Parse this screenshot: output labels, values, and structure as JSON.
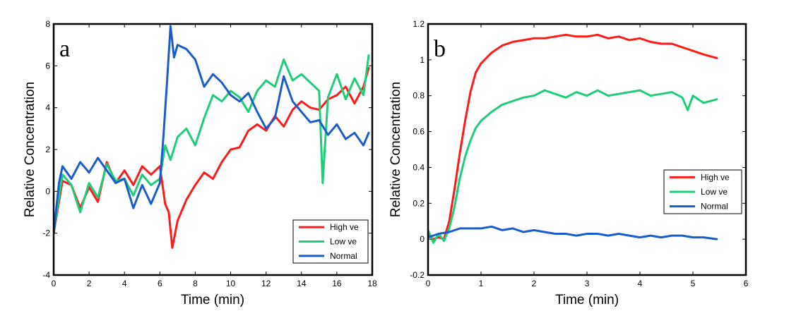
{
  "chart_data": [
    {
      "type": "line",
      "panel_label": "a",
      "xlabel": "Time (min)",
      "ylabel": "Relative Concentration",
      "xlim": [
        0,
        18
      ],
      "ylim": [
        -4,
        8
      ],
      "xticks": [
        0,
        2,
        4,
        6,
        8,
        10,
        12,
        14,
        16,
        18
      ],
      "yticks": [
        -4,
        -2,
        0,
        2,
        4,
        6,
        8
      ],
      "grid": false,
      "legend_position": "bottom-right",
      "series": [
        {
          "name": "High ve",
          "color": "#ff1a1a",
          "x": [
            0,
            0.5,
            1,
            1.5,
            2,
            2.5,
            3,
            3.5,
            4,
            4.5,
            5,
            5.5,
            6,
            6.3,
            6.5,
            6.7,
            7,
            7.5,
            8,
            8.5,
            9,
            9.5,
            10,
            10.5,
            11,
            11.5,
            12,
            12.5,
            13,
            13.5,
            14,
            14.5,
            15,
            15.5,
            16,
            16.5,
            17,
            17.5,
            17.8
          ],
          "y": [
            -2,
            0.5,
            0.3,
            -0.8,
            0.2,
            -0.5,
            1.4,
            0.4,
            1.0,
            0.3,
            1.2,
            0.8,
            1.2,
            -0.6,
            -1.0,
            -2.7,
            -1.4,
            -0.4,
            0.3,
            0.9,
            0.6,
            1.4,
            2.0,
            2.1,
            2.9,
            3.2,
            2.9,
            3.6,
            3.1,
            3.9,
            4.3,
            4.0,
            3.9,
            4.4,
            4.6,
            5.0,
            4.2,
            5.0,
            5.9
          ]
        },
        {
          "name": "Low ve",
          "color": "#1fcc7a",
          "x": [
            0,
            0.5,
            1,
            1.5,
            2,
            2.5,
            3,
            3.5,
            4,
            4.5,
            5,
            5.5,
            6,
            6.3,
            6.6,
            7,
            7.5,
            8,
            8.5,
            9,
            9.5,
            10,
            10.5,
            11,
            11.5,
            12,
            12.5,
            13,
            13.5,
            14,
            14.5,
            15,
            15.2,
            15.5,
            16,
            16.5,
            17,
            17.5,
            17.8
          ],
          "y": [
            -2,
            0.8,
            0.3,
            -1.0,
            0.4,
            -0.3,
            1.3,
            0.5,
            0.6,
            -0.2,
            0.8,
            0.3,
            0.6,
            2.2,
            1.5,
            2.6,
            3.0,
            2.2,
            3.5,
            4.6,
            4.3,
            4.8,
            4.5,
            3.8,
            4.8,
            5.3,
            5.0,
            6.3,
            5.3,
            5.6,
            5.2,
            4.8,
            0.4,
            4.5,
            5.6,
            4.4,
            5.4,
            4.6,
            6.5
          ]
        },
        {
          "name": "Normal",
          "color": "#1a5ccc",
          "x": [
            0,
            0.3,
            0.5,
            1,
            1.5,
            2,
            2.5,
            3,
            3.5,
            4,
            4.5,
            5,
            5.5,
            6,
            6.2,
            6.4,
            6.6,
            6.8,
            7,
            7.5,
            8,
            8.5,
            9,
            9.5,
            10,
            10.5,
            11,
            11.5,
            12,
            12.5,
            13,
            13.5,
            14,
            14.5,
            15,
            15.5,
            16,
            16.5,
            17,
            17.5,
            17.8
          ],
          "y": [
            -2,
            0.4,
            1.2,
            0.6,
            1.4,
            0.9,
            1.6,
            1.0,
            0.4,
            0.6,
            -0.8,
            0.3,
            -0.6,
            0.4,
            2.6,
            5.2,
            7.9,
            6.4,
            7.0,
            6.8,
            6.3,
            5.0,
            5.6,
            5.2,
            4.6,
            4.3,
            4.7,
            3.8,
            3.0,
            3.5,
            5.5,
            4.3,
            3.8,
            3.3,
            3.4,
            2.7,
            3.2,
            2.5,
            2.8,
            2.2,
            2.8
          ]
        }
      ]
    },
    {
      "type": "line",
      "panel_label": "b",
      "xlabel": "Time (min)",
      "ylabel": "Relative Concentration",
      "xlim": [
        0,
        6
      ],
      "ylim": [
        -0.2,
        1.2
      ],
      "xticks": [
        0,
        1,
        2,
        3,
        4,
        5,
        6
      ],
      "yticks": [
        -0.2,
        0,
        0.2,
        0.4,
        0.6,
        0.8,
        1,
        1.2
      ],
      "grid": false,
      "legend_position": "right",
      "series": [
        {
          "name": "High ve",
          "color": "#ff1a1a",
          "x": [
            0,
            0.1,
            0.2,
            0.3,
            0.4,
            0.5,
            0.6,
            0.7,
            0.8,
            0.9,
            1.0,
            1.2,
            1.4,
            1.6,
            1.8,
            2.0,
            2.2,
            2.4,
            2.6,
            2.8,
            3.0,
            3.2,
            3.4,
            3.6,
            3.8,
            4.0,
            4.2,
            4.4,
            4.6,
            4.8,
            5.0,
            5.2,
            5.45
          ],
          "y": [
            0.02,
            0.0,
            0.01,
            0.0,
            0.1,
            0.28,
            0.48,
            0.66,
            0.82,
            0.93,
            0.98,
            1.04,
            1.08,
            1.1,
            1.11,
            1.12,
            1.12,
            1.13,
            1.14,
            1.13,
            1.13,
            1.14,
            1.12,
            1.13,
            1.11,
            1.12,
            1.1,
            1.09,
            1.09,
            1.07,
            1.05,
            1.03,
            1.01
          ]
        },
        {
          "name": "Low ve",
          "color": "#1fcc7a",
          "x": [
            0,
            0.1,
            0.2,
            0.3,
            0.4,
            0.5,
            0.6,
            0.7,
            0.8,
            0.9,
            1.0,
            1.2,
            1.4,
            1.6,
            1.8,
            2.0,
            2.2,
            2.4,
            2.6,
            2.8,
            3.0,
            3.2,
            3.4,
            3.6,
            3.8,
            4.0,
            4.2,
            4.4,
            4.6,
            4.8,
            4.9,
            5.0,
            5.2,
            5.45
          ],
          "y": [
            0.05,
            -0.02,
            0.03,
            -0.01,
            0.06,
            0.18,
            0.34,
            0.46,
            0.55,
            0.62,
            0.66,
            0.71,
            0.75,
            0.77,
            0.79,
            0.8,
            0.83,
            0.81,
            0.79,
            0.82,
            0.8,
            0.83,
            0.8,
            0.81,
            0.82,
            0.83,
            0.8,
            0.81,
            0.82,
            0.79,
            0.72,
            0.8,
            0.76,
            0.78
          ]
        },
        {
          "name": "Normal",
          "color": "#1a5ccc",
          "x": [
            0,
            0.2,
            0.4,
            0.6,
            0.8,
            1.0,
            1.2,
            1.4,
            1.6,
            1.8,
            2.0,
            2.2,
            2.4,
            2.6,
            2.8,
            3.0,
            3.2,
            3.4,
            3.6,
            3.8,
            4.0,
            4.2,
            4.4,
            4.6,
            4.8,
            5.0,
            5.2,
            5.45
          ],
          "y": [
            0.01,
            0.03,
            0.04,
            0.06,
            0.06,
            0.06,
            0.07,
            0.05,
            0.06,
            0.04,
            0.05,
            0.04,
            0.03,
            0.03,
            0.02,
            0.03,
            0.03,
            0.02,
            0.03,
            0.02,
            0.01,
            0.02,
            0.01,
            0.02,
            0.02,
            0.01,
            0.01,
            0.0
          ]
        }
      ]
    }
  ]
}
